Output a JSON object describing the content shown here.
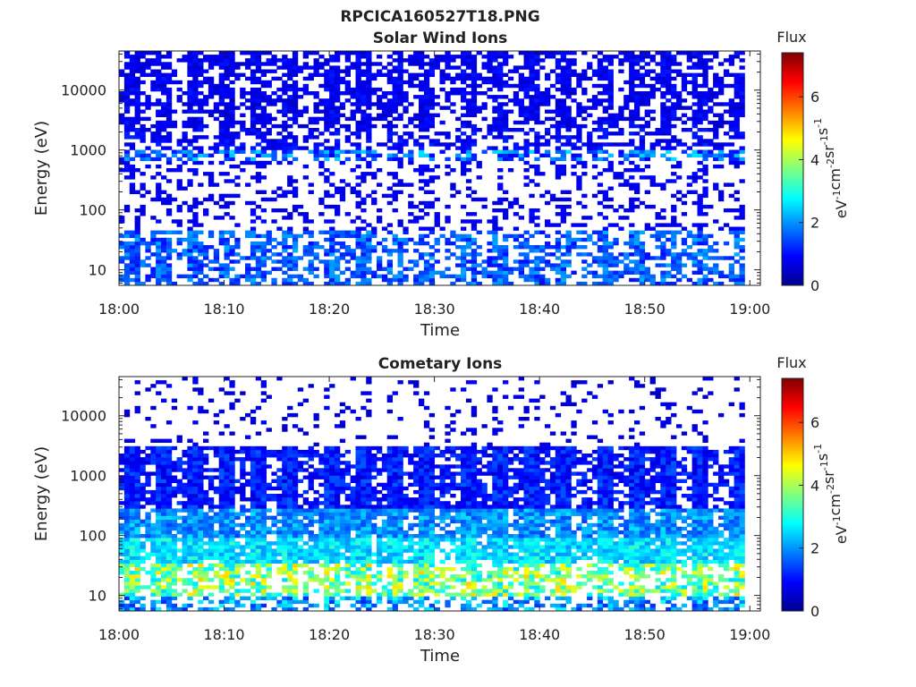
{
  "figure_title": "RPCICA160527T18.PNG",
  "colorbar_label_parts": [
    "eV",
    "-1",
    "cm",
    "-2",
    "sr",
    "-1",
    "s",
    "-1"
  ],
  "colormap": [
    "#00008f",
    "#0000ff",
    "#007fff",
    "#00ffff",
    "#7fff7f",
    "#ffff00",
    "#ff7f00",
    "#ff0000",
    "#7f0000"
  ],
  "chart_data": [
    {
      "type": "heatmap",
      "title": "Solar Wind Ions",
      "xlabel": "Time",
      "ylabel": "Energy (eV)",
      "x_ticks": [
        "18:00",
        "18:10",
        "18:20",
        "18:30",
        "18:40",
        "18:50",
        "19:00"
      ],
      "xlim_minutes": [
        0,
        61
      ],
      "y_ticks": [
        10,
        100,
        1000,
        10000
      ],
      "y_tick_labels": [
        "10",
        "100",
        "1000",
        "10000"
      ],
      "y_scale": "log",
      "ylim": [
        5.5,
        45000
      ],
      "grid": false,
      "colorbar": {
        "title": "Flux",
        "range": [
          0,
          7.4
        ],
        "ticks": [
          0,
          2,
          4,
          6
        ],
        "tick_labels": [
          "0",
          "2",
          "4",
          "6"
        ]
      },
      "intensity_profile": {
        "energy_bands": [
          {
            "emin": 5.5,
            "emax": 45,
            "flux_range": [
              1.0,
              2.2
            ],
            "coverage": 0.55
          },
          {
            "emin": 45,
            "emax": 700,
            "flux_range": [
              0.6,
              1.0
            ],
            "coverage": 0.25
          },
          {
            "emin": 700,
            "emax": 1000,
            "flux_range": [
              0.8,
              2.6
            ],
            "coverage": 0.55
          },
          {
            "emin": 1000,
            "emax": 2500,
            "flux_range": [
              0.6,
              1.2
            ],
            "coverage": 0.45
          },
          {
            "emin": 2500,
            "emax": 45000,
            "flux_range": [
              0.5,
              1.1
            ],
            "coverage": 0.6
          }
        ],
        "periodic_columns_minutes": [
          1,
          4,
          7,
          10,
          13,
          16,
          20,
          23,
          26,
          29,
          33,
          36,
          39,
          42,
          46,
          49,
          52,
          55,
          59
        ],
        "period_note": "vertical bursts roughly every 3 min"
      }
    },
    {
      "type": "heatmap",
      "title": "Cometary Ions",
      "xlabel": "Time",
      "ylabel": "Energy (eV)",
      "x_ticks": [
        "18:00",
        "18:10",
        "18:20",
        "18:30",
        "18:40",
        "18:50",
        "19:00"
      ],
      "xlim_minutes": [
        0,
        61
      ],
      "y_ticks": [
        10,
        100,
        1000,
        10000
      ],
      "y_tick_labels": [
        "10",
        "100",
        "1000",
        "10000"
      ],
      "y_scale": "log",
      "ylim": [
        5.5,
        45000
      ],
      "grid": false,
      "colorbar": {
        "title": "Flux",
        "range": [
          0,
          7.4
        ],
        "ticks": [
          0,
          2,
          4,
          6
        ],
        "tick_labels": [
          "0",
          "2",
          "4",
          "6"
        ]
      },
      "intensity_profile": {
        "energy_bands": [
          {
            "emin": 5.5,
            "emax": 10,
            "flux_range": [
              1.2,
              3.0
            ],
            "coverage": 0.55
          },
          {
            "emin": 10,
            "emax": 35,
            "flux_range": [
              2.5,
              5.0
            ],
            "coverage": 0.6
          },
          {
            "emin": 35,
            "emax": 90,
            "flux_range": [
              2.0,
              3.2
            ],
            "coverage": 0.98
          },
          {
            "emin": 90,
            "emax": 300,
            "flux_range": [
              1.4,
              2.6
            ],
            "coverage": 0.9
          },
          {
            "emin": 300,
            "emax": 3000,
            "flux_range": [
              0.6,
              1.6
            ],
            "coverage": 0.75
          },
          {
            "emin": 3000,
            "emax": 45000,
            "flux_range": [
              0.4,
              0.9
            ],
            "coverage": 0.12
          }
        ],
        "periodic_columns_minutes": [
          1,
          4,
          7,
          10,
          13,
          16,
          20,
          23,
          26,
          29,
          33,
          36,
          39,
          42,
          46,
          49,
          52,
          55,
          59
        ],
        "period_note": "vertical bursts roughly every 3 min"
      }
    }
  ]
}
